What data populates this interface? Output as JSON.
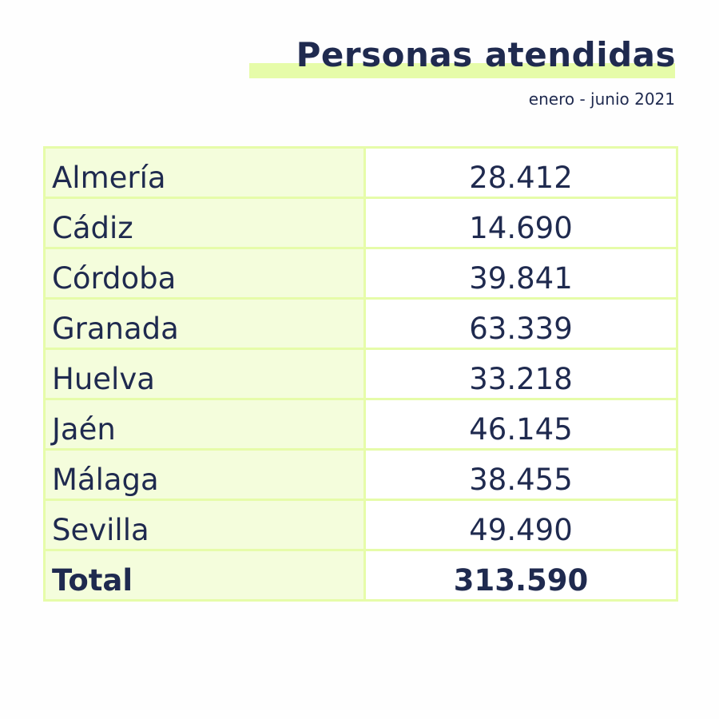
{
  "header": {
    "title": "Personas atendidas",
    "subtitle": "enero - junio 2021"
  },
  "table": {
    "rows": [
      {
        "name": "Almería",
        "value": "28.412"
      },
      {
        "name": "Cádiz",
        "value": "14.690"
      },
      {
        "name": "Córdoba",
        "value": "39.841"
      },
      {
        "name": "Granada",
        "value": "63.339"
      },
      {
        "name": "Huelva",
        "value": "33.218"
      },
      {
        "name": "Jaén",
        "value": "46.145"
      },
      {
        "name": "Málaga",
        "value": "38.455"
      },
      {
        "name": "Sevilla",
        "value": "49.490"
      }
    ],
    "total": {
      "name": "Total",
      "value": "313.590"
    }
  },
  "colors": {
    "text": "#1f2a4f",
    "accent": "#e6fca9",
    "cell_bg": "#f4fddc"
  }
}
